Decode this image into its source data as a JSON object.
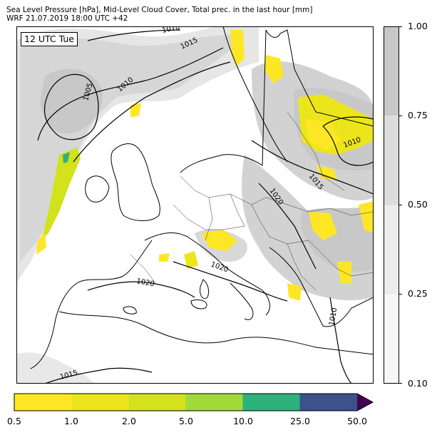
{
  "title_line1": "Sea Level Pressure [hPa], Mid-Level Cloud Cover, Total prec. in the last hour [mm]",
  "title_line2": "WRF 21.07.2019 18:00 UTC +42",
  "time_label": "12 UTC Tue",
  "isobar_labels": [
    "1010",
    "1015",
    "1005",
    "1010",
    "1010",
    "1015",
    "1020",
    "1020",
    "1020",
    "1010",
    "1015"
  ],
  "cloud_cover_legend": {
    "levels": [
      "1.00",
      "0.75",
      "0.50",
      "0.25",
      "0.10"
    ],
    "colors": [
      "#c8c8c8",
      "#dcdcdc",
      "#ececec",
      "#f7f7f7"
    ]
  },
  "precip_legend": {
    "levels": [
      "0.5",
      "1.0",
      "2.0",
      "5.0",
      "10.0",
      "25.0",
      "50.0"
    ],
    "colors": [
      "#fde725",
      "#ece51b",
      "#d2e21b",
      "#a0da39",
      "#2db27d",
      "#3b528b",
      "#440154"
    ]
  }
}
